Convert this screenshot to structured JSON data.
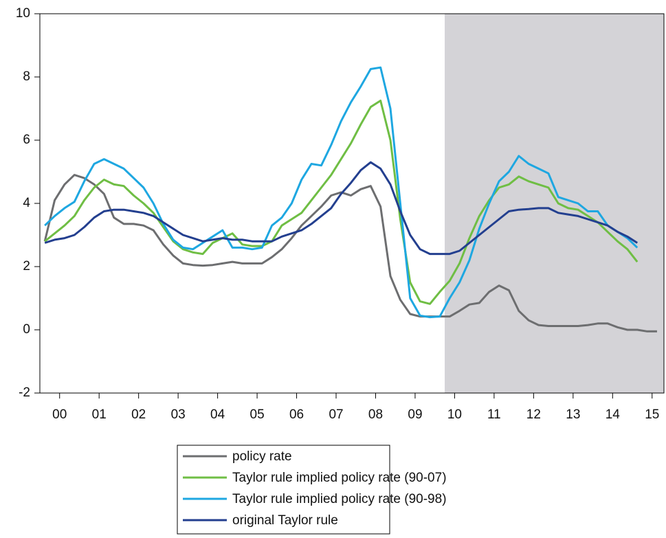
{
  "chart_data": {
    "type": "line",
    "x": [
      2000.125,
      2000.375,
      2000.625,
      2000.875,
      2001.125,
      2001.375,
      2001.625,
      2001.875,
      2002.125,
      2002.375,
      2002.625,
      2002.875,
      2003.125,
      2003.375,
      2003.625,
      2003.875,
      2004.125,
      2004.375,
      2004.625,
      2004.875,
      2005.125,
      2005.375,
      2005.625,
      2005.875,
      2006.125,
      2006.375,
      2006.625,
      2006.875,
      2007.125,
      2007.375,
      2007.625,
      2007.875,
      2008.125,
      2008.375,
      2008.625,
      2008.875,
      2009.125,
      2009.375,
      2009.625,
      2009.875,
      2010.125,
      2010.375,
      2010.625,
      2010.875,
      2011.125,
      2011.375,
      2011.625,
      2011.875,
      2012.125,
      2012.375,
      2012.625,
      2012.875,
      2013.125,
      2013.375,
      2013.625,
      2013.875,
      2014.125,
      2014.375,
      2014.625,
      2014.875,
      2015.125,
      2015.375,
      2015.625
    ],
    "series": [
      {
        "name": "policy rate",
        "color": "#6d6e70",
        "values": [
          2.8,
          4.1,
          4.6,
          4.9,
          4.8,
          4.6,
          4.3,
          3.55,
          3.35,
          3.35,
          3.3,
          3.15,
          2.7,
          2.35,
          2.1,
          2.05,
          2.03,
          2.05,
          2.1,
          2.15,
          2.1,
          2.1,
          2.1,
          2.3,
          2.55,
          2.9,
          3.3,
          3.6,
          3.9,
          4.25,
          4.35,
          4.25,
          4.45,
          4.55,
          3.9,
          1.7,
          0.95,
          0.5,
          0.42,
          0.42,
          0.42,
          0.42,
          0.6,
          0.8,
          0.85,
          1.2,
          1.4,
          1.25,
          0.6,
          0.3,
          0.15,
          0.12,
          0.12,
          0.12,
          0.12,
          0.15,
          0.2,
          0.2,
          0.08,
          0.0,
          0.0,
          -0.05,
          -0.05
        ]
      },
      {
        "name": "Taylor rule implied policy rate (90-07)",
        "color": "#6fbe44",
        "values": [
          2.8,
          3.05,
          3.3,
          3.6,
          4.1,
          4.5,
          4.75,
          4.6,
          4.55,
          4.25,
          4.0,
          3.7,
          3.25,
          2.8,
          2.55,
          2.45,
          2.4,
          2.75,
          2.9,
          3.05,
          2.7,
          2.65,
          2.65,
          2.8,
          3.3,
          3.5,
          3.7,
          4.1,
          4.5,
          4.9,
          5.4,
          5.9,
          6.5,
          7.05,
          7.25,
          6.0,
          3.5,
          1.5,
          0.9,
          0.82,
          1.2,
          1.55,
          2.1,
          2.9,
          3.6,
          4.1,
          4.5,
          4.6,
          4.85,
          4.7,
          4.6,
          4.5,
          4.0,
          3.85,
          3.8,
          3.6,
          3.4,
          3.1,
          2.8,
          2.55,
          2.15,
          null,
          null
        ]
      },
      {
        "name": "Taylor rule implied policy rate (90-98)",
        "color": "#1ea7e1",
        "values": [
          3.3,
          3.6,
          3.85,
          4.05,
          4.7,
          5.25,
          5.4,
          5.25,
          5.1,
          4.8,
          4.5,
          4.0,
          3.35,
          2.85,
          2.6,
          2.55,
          2.75,
          2.95,
          3.15,
          2.6,
          2.6,
          2.55,
          2.6,
          3.3,
          3.55,
          4.0,
          4.75,
          5.25,
          5.2,
          5.85,
          6.6,
          7.2,
          7.7,
          8.25,
          8.3,
          7.0,
          4.0,
          1.0,
          0.45,
          0.4,
          0.42,
          1.0,
          1.5,
          2.2,
          3.2,
          4.0,
          4.7,
          5.0,
          5.5,
          5.25,
          5.1,
          4.95,
          4.2,
          4.1,
          4.0,
          3.75,
          3.75,
          3.3,
          3.1,
          2.9,
          2.6,
          null,
          null
        ]
      },
      {
        "name": "original Taylor rule",
        "color": "#233f8f",
        "values": [
          2.75,
          2.85,
          2.9,
          3.0,
          3.25,
          3.55,
          3.75,
          3.8,
          3.8,
          3.75,
          3.7,
          3.6,
          3.4,
          3.2,
          3.0,
          2.9,
          2.8,
          2.85,
          2.9,
          2.85,
          2.85,
          2.8,
          2.8,
          2.8,
          2.95,
          3.05,
          3.15,
          3.35,
          3.6,
          3.85,
          4.3,
          4.65,
          5.05,
          5.3,
          5.1,
          4.6,
          3.75,
          3.0,
          2.55,
          2.4,
          2.4,
          2.4,
          2.5,
          2.75,
          3.0,
          3.25,
          3.5,
          3.75,
          3.8,
          3.82,
          3.85,
          3.85,
          3.7,
          3.65,
          3.6,
          3.5,
          3.4,
          3.3,
          3.1,
          2.95,
          2.75,
          null,
          null
        ]
      }
    ],
    "xlim": [
      2000,
      2015.8
    ],
    "xticks": [
      {
        "value": 2000.5,
        "label": "00"
      },
      {
        "value": 2001.5,
        "label": "01"
      },
      {
        "value": 2002.5,
        "label": "02"
      },
      {
        "value": 2003.5,
        "label": "03"
      },
      {
        "value": 2004.5,
        "label": "04"
      },
      {
        "value": 2005.5,
        "label": "05"
      },
      {
        "value": 2006.5,
        "label": "06"
      },
      {
        "value": 2007.5,
        "label": "07"
      },
      {
        "value": 2008.5,
        "label": "08"
      },
      {
        "value": 2009.5,
        "label": "09"
      },
      {
        "value": 2010.5,
        "label": "10"
      },
      {
        "value": 2011.5,
        "label": "11"
      },
      {
        "value": 2012.5,
        "label": "12"
      },
      {
        "value": 2013.5,
        "label": "13"
      },
      {
        "value": 2014.5,
        "label": "14"
      },
      {
        "value": 2015.5,
        "label": "15"
      }
    ],
    "ylim": [
      -2,
      10
    ],
    "yticks": [
      -2,
      0,
      2,
      4,
      6,
      8,
      10
    ],
    "shaded_region": {
      "x": [
        2010.25,
        2015.8
      ],
      "color": "#d4d3d7"
    },
    "legend": "bottom"
  }
}
